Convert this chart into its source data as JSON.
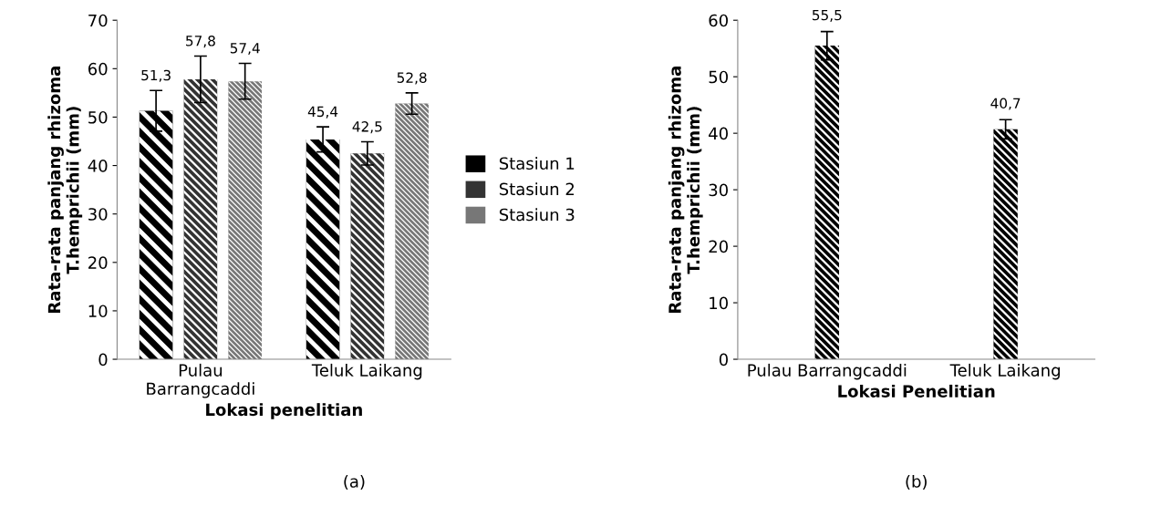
{
  "chart_data": [
    {
      "type": "bar",
      "ylabel": "Rata-rata panjang rhizoma\nT.hemprichii (mm)",
      "xlabel": "Lokasi penelitian",
      "categories": [
        "Pulau\nBarrangcaddi",
        "Teluk Laikang"
      ],
      "ylim": [
        0,
        70
      ],
      "yticks": [
        0,
        10,
        20,
        30,
        40,
        50,
        60,
        70
      ],
      "legend": "right",
      "annotations": [
        "(a)"
      ],
      "series": [
        {
          "name": "Stasiun 1",
          "color": "#000000",
          "values": [
            51.3,
            45.4
          ],
          "errors": [
            4.2,
            2.6
          ],
          "value_labels": [
            "51,3",
            "45,4"
          ]
        },
        {
          "name": "Stasiun 2",
          "color": "#333333",
          "values": [
            57.8,
            42.5
          ],
          "errors": [
            4.8,
            2.4
          ],
          "value_labels": [
            "57,8",
            "42,5"
          ]
        },
        {
          "name": "Stasiun 3",
          "color": "#777777",
          "values": [
            57.4,
            52.8
          ],
          "errors": [
            3.7,
            2.2
          ],
          "value_labels": [
            "57,4",
            "52,8"
          ]
        }
      ]
    },
    {
      "type": "bar",
      "ylabel": "Rata-rata panjang rhizoma\nT.hemprichii (mm)",
      "xlabel": "Lokasi Penelitian",
      "categories": [
        "Pulau Barrangcaddi",
        "Teluk Laikang"
      ],
      "ylim": [
        0,
        60
      ],
      "yticks": [
        0,
        10,
        20,
        30,
        40,
        50,
        60
      ],
      "annotations": [
        "(b)"
      ],
      "series": [
        {
          "color": "#000000",
          "values": [
            55.5,
            40.7
          ],
          "errors": [
            2.5,
            1.7
          ],
          "value_labels": [
            "55,5",
            "40,7"
          ]
        }
      ]
    }
  ]
}
